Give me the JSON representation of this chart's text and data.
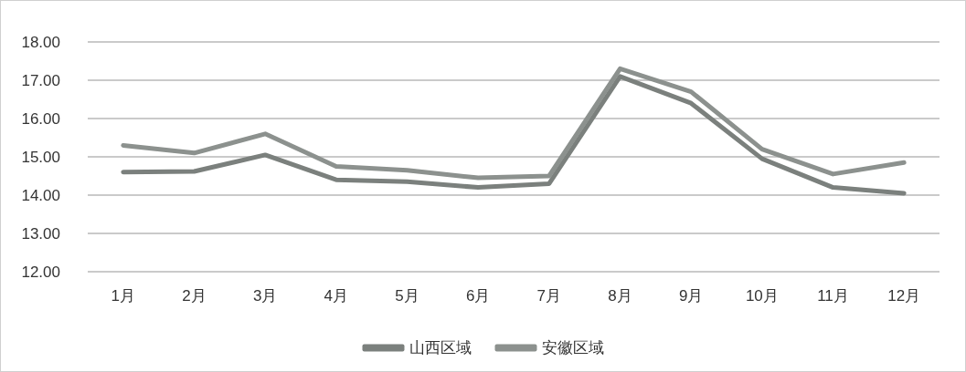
{
  "chart_data": {
    "type": "line",
    "categories": [
      "1月",
      "2月",
      "3月",
      "4月",
      "5月",
      "6月",
      "7月",
      "8月",
      "9月",
      "10月",
      "11月",
      "12月"
    ],
    "series": [
      {
        "name": "山西区域",
        "color": "#7b807d",
        "values": [
          14.6,
          14.62,
          15.05,
          14.4,
          14.35,
          14.2,
          14.3,
          17.1,
          16.4,
          14.95,
          14.2,
          14.05
        ]
      },
      {
        "name": "安徽区域",
        "color": "#8c918e",
        "values": [
          15.3,
          15.1,
          15.6,
          14.75,
          14.65,
          14.45,
          14.5,
          17.3,
          16.7,
          15.2,
          14.55,
          14.85
        ]
      }
    ],
    "ylim": [
      12,
      18
    ],
    "yticks": [
      {
        "value": 12,
        "label": "12.00"
      },
      {
        "value": 13,
        "label": "13.00"
      },
      {
        "value": 14,
        "label": "14.00"
      },
      {
        "value": 15,
        "label": "15.00"
      },
      {
        "value": 16,
        "label": "16.00"
      },
      {
        "value": 17,
        "label": "17.00"
      },
      {
        "value": 18,
        "label": "18.00"
      }
    ],
    "grid": "y",
    "legend": "bottom",
    "marker": "none",
    "line_style": "solid"
  }
}
